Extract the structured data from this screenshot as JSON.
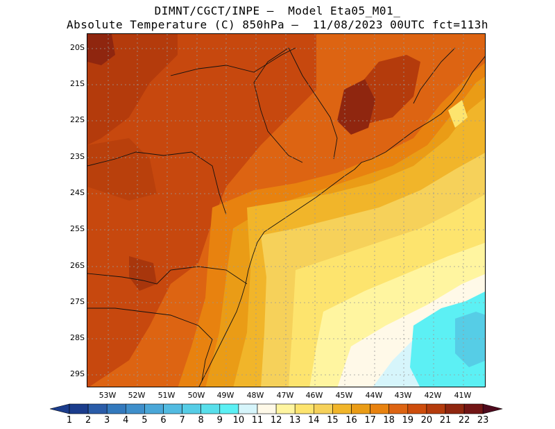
{
  "header": {
    "line1": "DIMNT/CGCT/INPE –  Model Eta05_M01_",
    "line2": "Absolute Temperature (C) 850hPa –  11/08/2023 00UTC fct=113h"
  },
  "map": {
    "lat_labels": [
      "20S",
      "21S",
      "22S",
      "23S",
      "24S",
      "25S",
      "26S",
      "27S",
      "28S",
      "29S"
    ],
    "lon_labels": [
      "53W",
      "52W",
      "51W",
      "50W",
      "49W",
      "48W",
      "47W",
      "46W",
      "45W",
      "44W",
      "43W",
      "42W",
      "41W"
    ],
    "grid": true
  },
  "colorbar": {
    "labels": [
      "1",
      "2",
      "3",
      "4",
      "5",
      "6",
      "7",
      "8",
      "9",
      "10",
      "11",
      "12",
      "13",
      "14",
      "15",
      "16",
      "17",
      "18",
      "19",
      "20",
      "21",
      "22",
      "23"
    ],
    "colors": [
      "#1b3c8c",
      "#1b3c8c",
      "#2a5ca8",
      "#3379bd",
      "#3f8fcb",
      "#4aa7d8",
      "#52bbe1",
      "#56cde6",
      "#58dfeb",
      "#5cf0f4",
      "#d6f5fb",
      "#fff9e8",
      "#fff5a0",
      "#fde46e",
      "#f6d15a",
      "#f1b52a",
      "#ea9c16",
      "#e8820f",
      "#dd6412",
      "#ce4d0c",
      "#b43b0c",
      "#8f260f",
      "#721515",
      "#4e0a1d"
    ]
  }
}
